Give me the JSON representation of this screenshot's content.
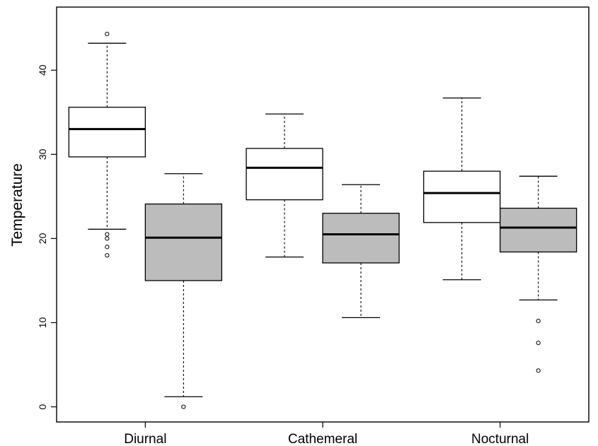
{
  "chart_data": {
    "type": "boxplot",
    "title": "",
    "xlabel": "",
    "ylabel": "Temperature",
    "ylim": [
      -1.8,
      47.5
    ],
    "yticks": [
      0,
      10,
      20,
      30,
      40
    ],
    "grid": false,
    "legend": "none",
    "categories": [
      "Diurnal",
      "Cathemeral",
      "Nocturnal"
    ],
    "series": [
      {
        "fill": "#ffffff",
        "boxes": [
          {
            "category": "Diurnal",
            "whisker_low": 21.1,
            "q1": 29.7,
            "median": 33.0,
            "q3": 35.6,
            "whisker_high": 43.2,
            "outliers": [
              44.3,
              20.5,
              20.0,
              19.0,
              18.0
            ]
          },
          {
            "category": "Cathemeral",
            "whisker_low": 17.8,
            "q1": 24.6,
            "median": 28.4,
            "q3": 30.7,
            "whisker_high": 34.8,
            "outliers": []
          },
          {
            "category": "Nocturnal",
            "whisker_low": 15.1,
            "q1": 21.9,
            "median": 25.4,
            "q3": 28.0,
            "whisker_high": 36.7,
            "outliers": []
          }
        ]
      },
      {
        "fill": "#bcbcbc",
        "boxes": [
          {
            "category": "Diurnal",
            "whisker_low": 1.2,
            "q1": 15.0,
            "median": 20.1,
            "q3": 24.1,
            "whisker_high": 27.7,
            "outliers": [
              0.0
            ]
          },
          {
            "category": "Cathemeral",
            "whisker_low": 10.6,
            "q1": 17.1,
            "median": 20.5,
            "q3": 23.0,
            "whisker_high": 26.4,
            "outliers": []
          },
          {
            "category": "Nocturnal",
            "whisker_low": 12.7,
            "q1": 18.4,
            "median": 21.3,
            "q3": 23.6,
            "whisker_high": 27.4,
            "outliers": [
              10.2,
              7.6,
              4.3
            ]
          }
        ]
      }
    ]
  }
}
